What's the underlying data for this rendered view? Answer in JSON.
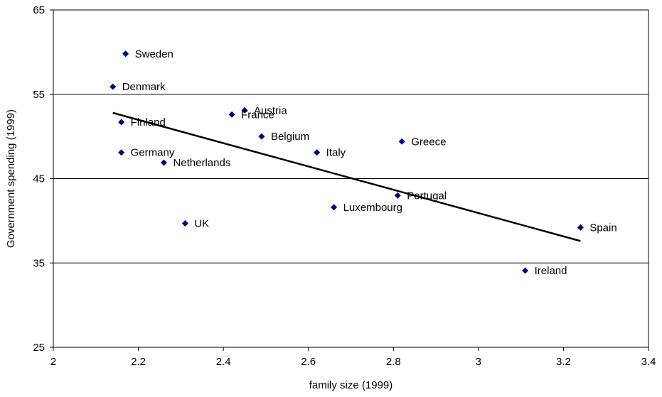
{
  "chart_data": {
    "type": "scatter",
    "title": "",
    "xlabel": "family size (1999)",
    "ylabel": "Government spending (1999)",
    "xlim": [
      2,
      3.4
    ],
    "ylim": [
      25,
      65
    ],
    "xticks": [
      "2",
      "2.2",
      "2.4",
      "2.6",
      "2.8",
      "3",
      "3.2",
      "3.4"
    ],
    "yticks": [
      "25",
      "35",
      "45",
      "55",
      "65"
    ],
    "grid": "horizontal",
    "marker_color": "#000080",
    "trendline": {
      "x": [
        2.14,
        3.24
      ],
      "y": [
        52.8,
        37.6
      ]
    },
    "points": [
      {
        "label": "Sweden",
        "x": 2.17,
        "y": 59.8
      },
      {
        "label": "Denmark",
        "x": 2.14,
        "y": 55.9
      },
      {
        "label": "Austria",
        "x": 2.45,
        "y": 53.1
      },
      {
        "label": "France",
        "x": 2.42,
        "y": 52.6
      },
      {
        "label": "Finland",
        "x": 2.16,
        "y": 51.7
      },
      {
        "label": "Belgium",
        "x": 2.49,
        "y": 50.0
      },
      {
        "label": "Greece",
        "x": 2.82,
        "y": 49.4
      },
      {
        "label": "Germany",
        "x": 2.16,
        "y": 48.1
      },
      {
        "label": "Italy",
        "x": 2.62,
        "y": 48.1
      },
      {
        "label": "Netherlands",
        "x": 2.26,
        "y": 46.9
      },
      {
        "label": "Portugal",
        "x": 2.81,
        "y": 43.0
      },
      {
        "label": "Luxembourg",
        "x": 2.66,
        "y": 41.6
      },
      {
        "label": "UK",
        "x": 2.31,
        "y": 39.7
      },
      {
        "label": "Spain",
        "x": 3.24,
        "y": 39.2
      },
      {
        "label": "Ireland",
        "x": 3.11,
        "y": 34.1
      }
    ]
  }
}
